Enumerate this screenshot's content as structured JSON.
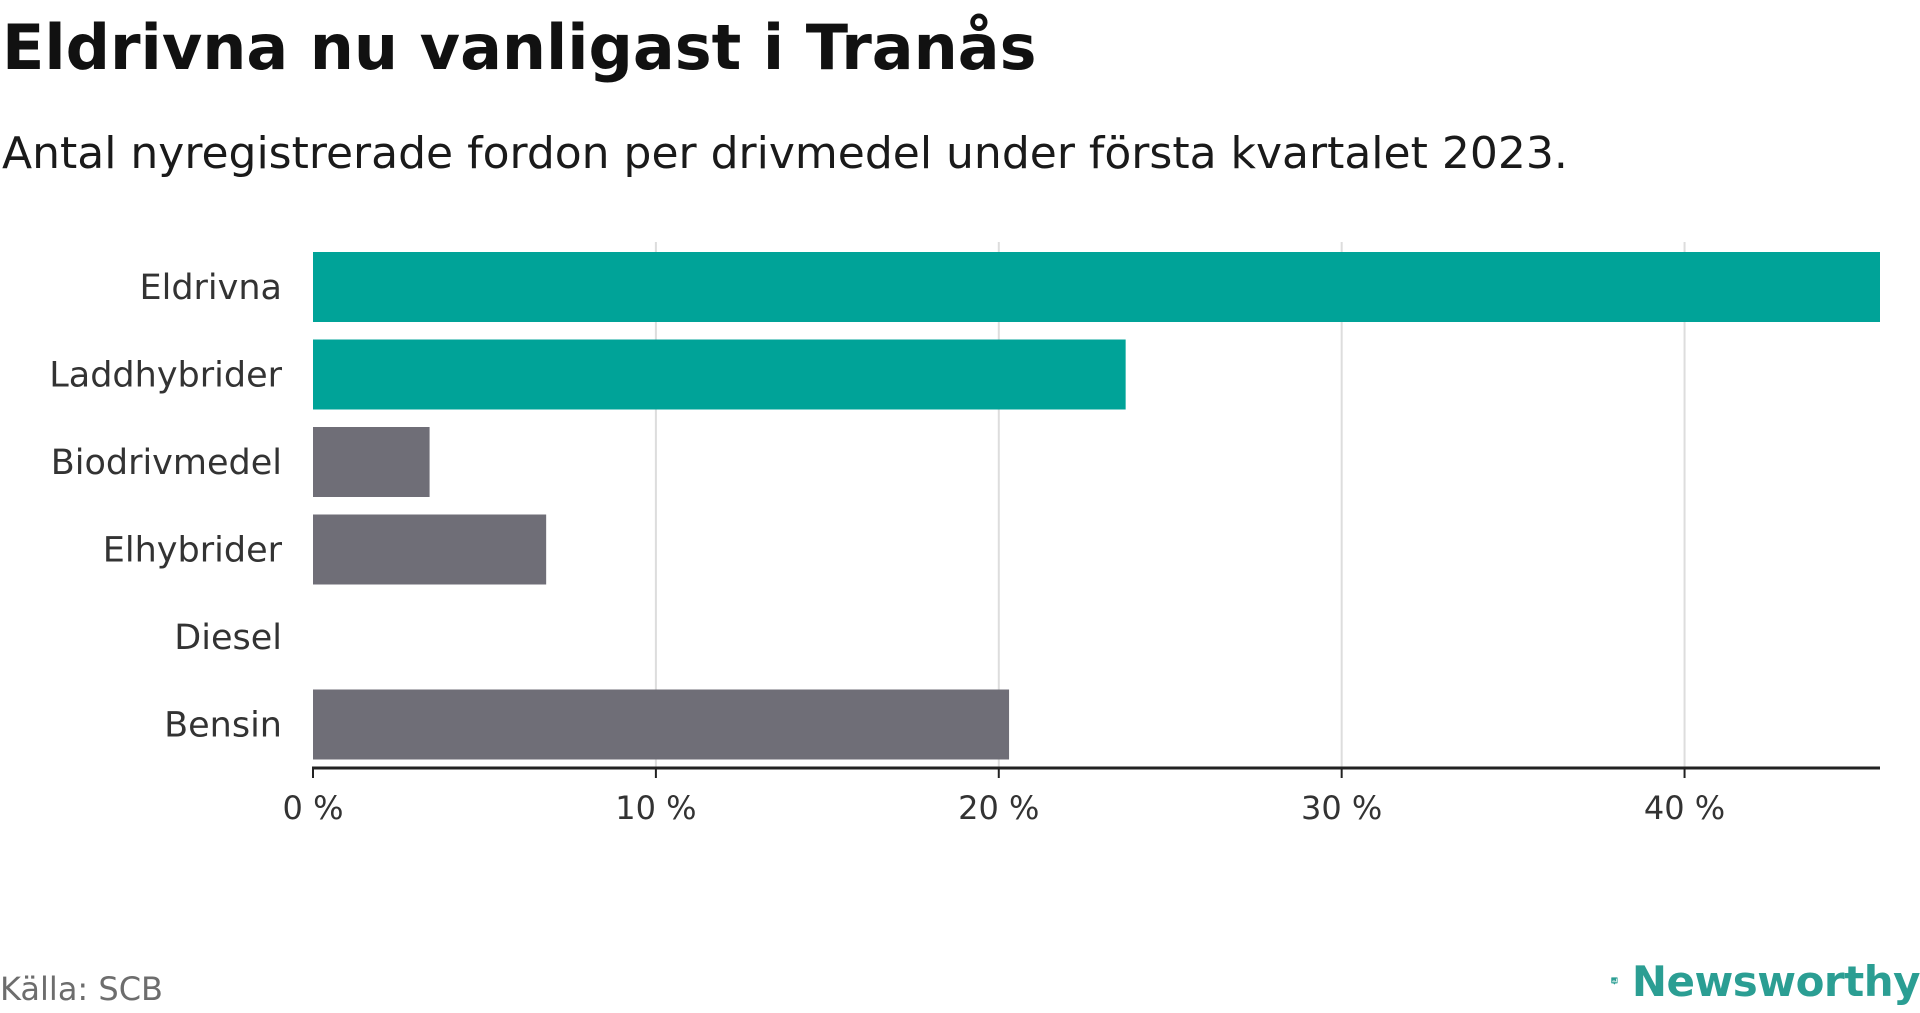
{
  "header": {
    "title": "Eldrivna nu vanligast i Tranås",
    "subtitle": "Antal nyregistrerade fordon per drivmedel under första kvartalet 2023."
  },
  "footer": {
    "source": "Källa: SCB",
    "brand": "Newsworthy",
    "brand_icon": "bar-chart-logo-icon"
  },
  "colors": {
    "highlight": "#00a398",
    "neutral": "#6f6e77",
    "grid": "#dddddd",
    "axis": "#222222",
    "brand": "#2b9e93"
  },
  "chart_data": {
    "type": "bar",
    "orientation": "horizontal",
    "categories": [
      "Eldrivna",
      "Laddhybrider",
      "Biodrivmedel",
      "Elhybrider",
      "Diesel",
      "Bensin"
    ],
    "values": [
      45.7,
      23.7,
      3.4,
      6.8,
      0,
      20.3
    ],
    "highlight": [
      true,
      true,
      false,
      false,
      false,
      false
    ],
    "x_ticks": [
      0,
      10,
      20,
      30,
      40
    ],
    "x_tick_labels": [
      "0 %",
      "10 %",
      "20 %",
      "30 %",
      "40 %"
    ],
    "xlim": [
      0,
      45.7
    ],
    "grid": "vertical",
    "legend": "none",
    "xlabel": "",
    "ylabel": ""
  }
}
